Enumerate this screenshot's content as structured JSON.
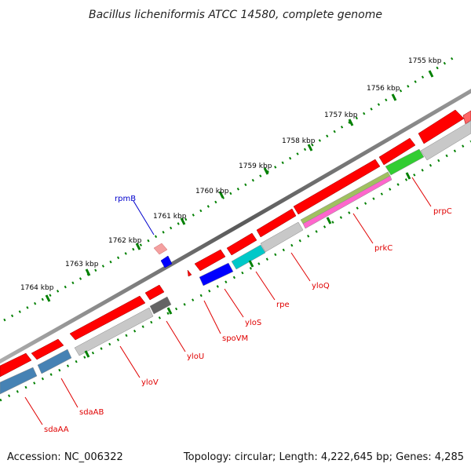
{
  "title": "Bacillus licheniformis ATCC 14580, complete genome",
  "footer": {
    "accession": "Accession: NC_006322",
    "summary": "Topology: circular; Length: 4,222,645 bp; Genes: 4,285"
  },
  "colors": {
    "forward_gene": "#ff0000",
    "reverse_gene": "#c8c8c8",
    "backbone": "#808080",
    "tick": "#008000",
    "label_red": "#e00000",
    "label_blue": "#0000cc",
    "rpe_cyan": "#00c8c8",
    "ylos_blue": "#0000ff",
    "sda_blue": "#4682b4",
    "prpc_green": "#32cd32",
    "ylou_gray": "#646464"
  },
  "scale_labels": [
    {
      "id": "1755",
      "text": "1755 kbp"
    },
    {
      "id": "1756",
      "text": "1756 kbp"
    },
    {
      "id": "1757",
      "text": "1757 kbp"
    },
    {
      "id": "1758",
      "text": "1758 kbp"
    },
    {
      "id": "1759",
      "text": "1759 kbp"
    },
    {
      "id": "1760",
      "text": "1760 kbp"
    },
    {
      "id": "1761",
      "text": "1761 kbp"
    },
    {
      "id": "1762",
      "text": "1762 kbp"
    },
    {
      "id": "1763",
      "text": "1763 kbp"
    },
    {
      "id": "1764",
      "text": "1764 kbp"
    }
  ],
  "gene_labels": [
    {
      "id": "rpmB",
      "text": "rpmB"
    },
    {
      "id": "prpC",
      "text": "prpC"
    },
    {
      "id": "prkC",
      "text": "prkC"
    },
    {
      "id": "yloQ",
      "text": "yloQ"
    },
    {
      "id": "rpe",
      "text": "rpe"
    },
    {
      "id": "yloS",
      "text": "yloS"
    },
    {
      "id": "spoVM",
      "text": "spoVM"
    },
    {
      "id": "yloU",
      "text": "yloU"
    },
    {
      "id": "yloV",
      "text": "yloV"
    },
    {
      "id": "sdaAB",
      "text": "sdaAB"
    },
    {
      "id": "sdaAA",
      "text": "sdaAA"
    }
  ]
}
